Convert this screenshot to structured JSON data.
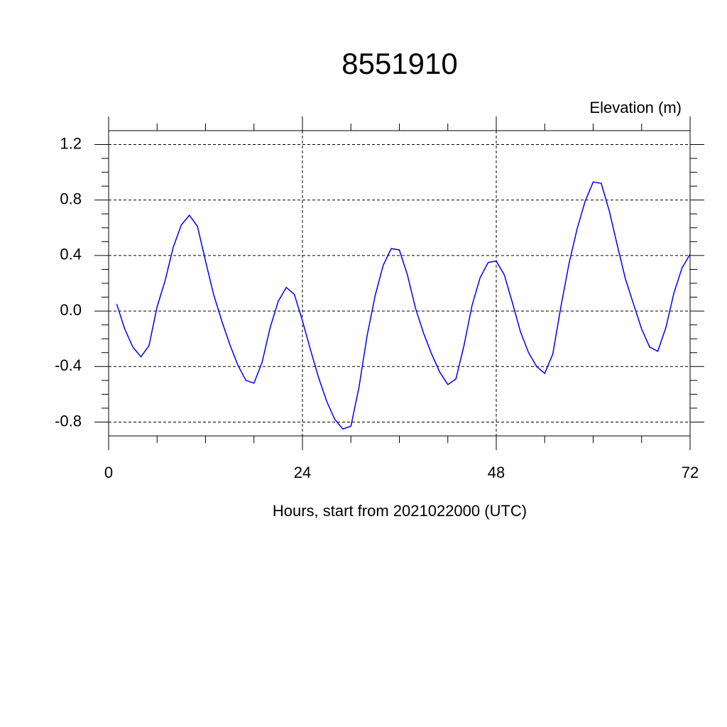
{
  "chart_data": {
    "type": "line",
    "title": "8551910",
    "y_label": "Elevation (m)",
    "x_label": "Hours, start from 2021022000 (UTC)",
    "x": [
      1,
      2,
      3,
      4,
      5,
      6,
      7,
      8,
      9,
      10,
      11,
      12,
      13,
      14,
      15,
      16,
      17,
      18,
      19,
      20,
      21,
      22,
      23,
      24,
      25,
      26,
      27,
      28,
      29,
      30,
      31,
      32,
      33,
      34,
      35,
      36,
      37,
      38,
      39,
      40,
      41,
      42,
      43,
      44,
      45,
      46,
      47,
      48,
      49,
      50,
      51,
      52,
      53,
      54,
      55,
      56,
      57,
      58,
      59,
      60,
      61,
      62,
      63,
      64,
      65,
      66,
      67,
      68,
      69,
      70,
      71,
      72
    ],
    "series": [
      {
        "color": "#0000ee",
        "values": [
          0.05,
          -0.13,
          -0.26,
          -0.33,
          -0.25,
          0.03,
          0.22,
          0.46,
          0.62,
          0.69,
          0.61,
          0.36,
          0.12,
          -0.07,
          -0.24,
          -0.39,
          -0.5,
          -0.52,
          -0.37,
          -0.12,
          0.07,
          0.17,
          0.12,
          -0.07,
          -0.28,
          -0.48,
          -0.65,
          -0.78,
          -0.85,
          -0.83,
          -0.55,
          -0.18,
          0.11,
          0.33,
          0.45,
          0.44,
          0.26,
          0.02,
          -0.16,
          -0.31,
          -0.44,
          -0.53,
          -0.49,
          -0.25,
          0.04,
          0.24,
          0.35,
          0.36,
          0.26,
          0.06,
          -0.15,
          -0.3,
          -0.4,
          -0.45,
          -0.31,
          0.03,
          0.34,
          0.59,
          0.79,
          0.93,
          0.92,
          0.72,
          0.47,
          0.23,
          0.05,
          -0.13,
          -0.26,
          -0.29,
          -0.12,
          0.13,
          0.31,
          0.41
        ]
      }
    ],
    "xlim": [
      0,
      72
    ],
    "xticks": [
      0,
      24,
      48,
      72
    ],
    "ylim": [
      -0.9,
      1.3
    ],
    "yticks": [
      1.2,
      0.8,
      0.4,
      {
        "value": 0,
        "label": "0.0"
      },
      -0.4,
      -0.8
    ],
    "grid": true
  }
}
